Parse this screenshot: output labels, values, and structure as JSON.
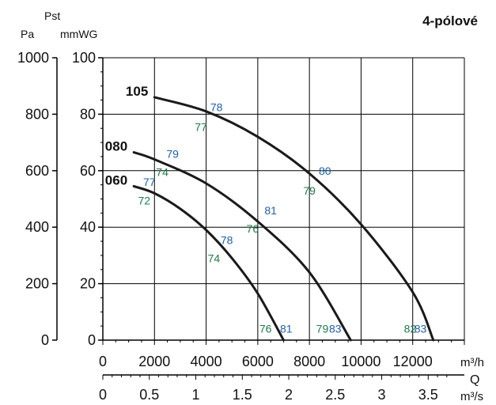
{
  "title": "4-pólové",
  "left_axis": {
    "unit_pa": "Pa",
    "unit_pst": "Pst",
    "unit_mmwg": "mmWG",
    "pa_ticks": [
      0,
      200,
      400,
      600,
      800,
      1000
    ],
    "mmwg_ticks": [
      0,
      20,
      40,
      60,
      80,
      100
    ]
  },
  "bottom_axis": {
    "unit_m3h": "m³/h",
    "unit_q": "Q",
    "unit_m3s": "m³/s",
    "m3h_ticks": [
      0,
      2000,
      4000,
      6000,
      8000,
      10000,
      12000
    ],
    "m3s_ticks": [
      "0",
      "0.5",
      "1",
      "1.5",
      "2",
      "2.5",
      "3",
      "3.5"
    ]
  },
  "colors": {
    "curve": "#1a1a1a",
    "blue_label": "#1f5fa6",
    "green_label": "#1f7a4a",
    "grid": "#000000"
  },
  "chart_data": {
    "type": "line",
    "title": "4-pólové",
    "xlabel": "Q",
    "ylabel": "Pst",
    "x_unit": "m³/h",
    "y_unit": "Pa",
    "xlim": [
      0,
      14000
    ],
    "ylim": [
      0,
      1000
    ],
    "grid": true,
    "series": [
      {
        "name": "105",
        "points": [
          [
            2000,
            860
          ],
          [
            4000,
            810
          ],
          [
            6000,
            720
          ],
          [
            8000,
            590
          ],
          [
            10000,
            410
          ],
          [
            12000,
            170
          ],
          [
            12800,
            0
          ]
        ],
        "annotations": [
          {
            "x": 4400,
            "y": 825,
            "text": "78",
            "color": "blue"
          },
          {
            "x": 3800,
            "y": 755,
            "text": "77",
            "color": "green"
          },
          {
            "x": 8600,
            "y": 600,
            "text": "80",
            "color": "blue"
          },
          {
            "x": 8000,
            "y": 530,
            "text": "79",
            "color": "green"
          },
          {
            "x": 12300,
            "y": 40,
            "text": "83",
            "color": "blue"
          },
          {
            "x": 11900,
            "y": 40,
            "text": "82",
            "color": "green"
          }
        ]
      },
      {
        "name": "080",
        "points": [
          [
            1200,
            665
          ],
          [
            2000,
            640
          ],
          [
            4000,
            555
          ],
          [
            6000,
            420
          ],
          [
            8000,
            240
          ],
          [
            9600,
            0
          ]
        ],
        "annotations": [
          {
            "x": 2700,
            "y": 660,
            "text": "79",
            "color": "blue"
          },
          {
            "x": 2300,
            "y": 595,
            "text": "74",
            "color": "green"
          },
          {
            "x": 6500,
            "y": 460,
            "text": "81",
            "color": "blue"
          },
          {
            "x": 5800,
            "y": 395,
            "text": "76",
            "color": "green"
          },
          {
            "x": 9000,
            "y": 40,
            "text": "83",
            "color": "blue"
          },
          {
            "x": 8500,
            "y": 40,
            "text": "79",
            "color": "green"
          }
        ]
      },
      {
        "name": "060",
        "points": [
          [
            1200,
            545
          ],
          [
            2000,
            520
          ],
          [
            3000,
            465
          ],
          [
            4000,
            390
          ],
          [
            5000,
            290
          ],
          [
            6000,
            165
          ],
          [
            7000,
            0
          ]
        ],
        "annotations": [
          {
            "x": 1800,
            "y": 560,
            "text": "77",
            "color": "blue"
          },
          {
            "x": 1600,
            "y": 495,
            "text": "72",
            "color": "green"
          },
          {
            "x": 4800,
            "y": 355,
            "text": "78",
            "color": "blue"
          },
          {
            "x": 4300,
            "y": 290,
            "text": "74",
            "color": "green"
          },
          {
            "x": 7100,
            "y": 40,
            "text": "81",
            "color": "blue"
          },
          {
            "x": 6300,
            "y": 40,
            "text": "76",
            "color": "green"
          }
        ]
      }
    ]
  }
}
